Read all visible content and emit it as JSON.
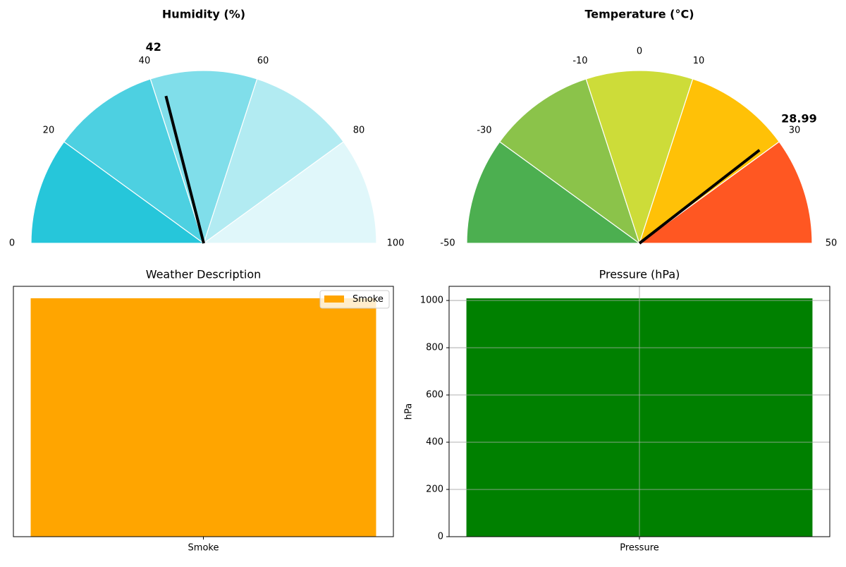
{
  "chart_data": [
    {
      "type": "gauge",
      "title": "Humidity (%)",
      "value": 42,
      "value_label": "42",
      "range": [
        0,
        100
      ],
      "ticks": [
        "0",
        "20",
        "40",
        "60",
        "80",
        "100"
      ],
      "bands": [
        {
          "from": 0,
          "to": 20,
          "color": "#26c6da"
        },
        {
          "from": 20,
          "to": 40,
          "color": "#4dd0e1"
        },
        {
          "from": 40,
          "to": 60,
          "color": "#80deea"
        },
        {
          "from": 60,
          "to": 80,
          "color": "#b2ebf2"
        },
        {
          "from": 80,
          "to": 100,
          "color": "#e0f7fa"
        }
      ],
      "needle_color": "#000000"
    },
    {
      "type": "gauge",
      "title": "Temperature (°C)",
      "value": 28.99,
      "value_label": "28.99",
      "range": [
        -50,
        50
      ],
      "ticks": [
        "-50",
        "-30",
        "-10",
        "0",
        "10",
        "30",
        "50"
      ],
      "bands": [
        {
          "from": -50,
          "to": -30,
          "color": "#4caf50"
        },
        {
          "from": -30,
          "to": -10,
          "color": "#8bc34a"
        },
        {
          "from": -10,
          "to": 10,
          "color": "#cddc39"
        },
        {
          "from": 10,
          "to": 30,
          "color": "#ffc107"
        },
        {
          "from": 30,
          "to": 50,
          "color": "#ff5722"
        }
      ],
      "needle_color": "#000000"
    },
    {
      "type": "bar",
      "title": "Weather Description",
      "categories": [
        "Smoke"
      ],
      "values": [
        1
      ],
      "ylim": [
        0,
        1.05
      ],
      "color": "#ffa500",
      "legend": {
        "entries": [
          "Smoke"
        ],
        "position": "top-right"
      },
      "show_y_ticks": false,
      "grid": false
    },
    {
      "type": "bar",
      "title": "Pressure (hPa)",
      "categories": [
        "Pressure"
      ],
      "values": [
        1009
      ],
      "ylabel": "hPa",
      "ylim": [
        0,
        1060
      ],
      "yticks": [
        0,
        200,
        400,
        600,
        800,
        1000
      ],
      "color": "#008000",
      "grid": true
    }
  ]
}
